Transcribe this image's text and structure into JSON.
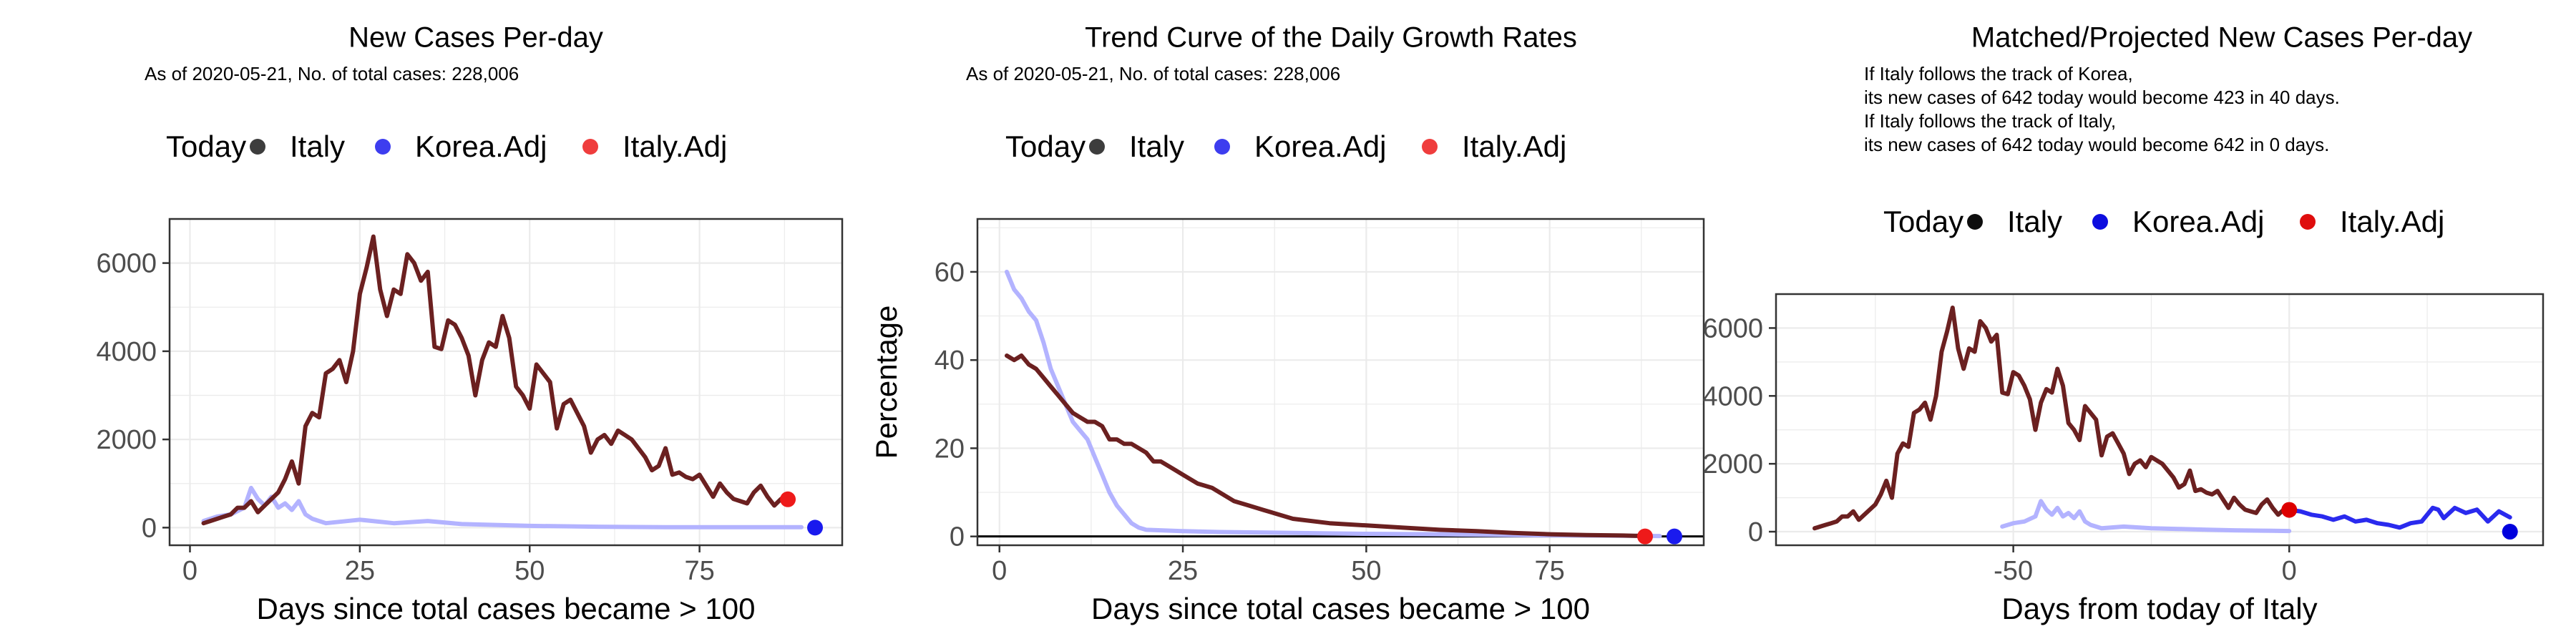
{
  "chart_data": [
    {
      "type": "line",
      "title": "New Cases Per-day",
      "subtitle": "As of 2020-05-21, No. of total cases: 228,006",
      "legend": {
        "title": "Today",
        "placement": "top",
        "entries": [
          {
            "label": "Italy",
            "color": "#333333"
          },
          {
            "label": "Korea.Adj",
            "color": "#3333ee"
          },
          {
            "label": "Italy.Adj",
            "color": "#ee3333"
          }
        ]
      },
      "xlabel": "Days since total cases became > 100",
      "ylabel": "",
      "xlim": [
        -3,
        96
      ],
      "ylim": [
        -400,
        7000
      ],
      "xticks": [
        0,
        25,
        50,
        75
      ],
      "yticks": [
        0,
        2000,
        4000,
        6000
      ],
      "grid": true,
      "series": [
        {
          "name": "Korea.Adj",
          "color": "#b3b3ff",
          "x": [
            2,
            4,
            6,
            8,
            9,
            10,
            11,
            12,
            13,
            14,
            15,
            16,
            17,
            18,
            20,
            25,
            30,
            35,
            40,
            50,
            60,
            70,
            80,
            90
          ],
          "y": [
            150,
            250,
            300,
            450,
            900,
            650,
            500,
            700,
            450,
            550,
            400,
            600,
            300,
            200,
            100,
            180,
            100,
            150,
            80,
            40,
            20,
            10,
            10,
            10
          ]
        },
        {
          "name": "Italy",
          "color": "#6b2020",
          "x": [
            2,
            3,
            4,
            5,
            6,
            7,
            8,
            9,
            10,
            11,
            12,
            13,
            14,
            15,
            16,
            17,
            18,
            19,
            20,
            21,
            22,
            23,
            24,
            25,
            26,
            27,
            28,
            29,
            30,
            31,
            32,
            33,
            34,
            35,
            36,
            37,
            38,
            39,
            40,
            41,
            42,
            43,
            44,
            45,
            46,
            47,
            48,
            49,
            50,
            51,
            52,
            53,
            54,
            55,
            56,
            57,
            58,
            59,
            60,
            61,
            62,
            63,
            64,
            65,
            66,
            67,
            68,
            69,
            70,
            71,
            72,
            73,
            74,
            75,
            76,
            77,
            78,
            79,
            80,
            81,
            82,
            83,
            84,
            85,
            86,
            87,
            88
          ],
          "y": [
            100,
            150,
            200,
            250,
            300,
            450,
            450,
            600,
            350,
            500,
            650,
            800,
            1100,
            1500,
            1000,
            2300,
            2600,
            2500,
            3500,
            3600,
            3800,
            3300,
            4000,
            5300,
            5900,
            6600,
            5400,
            4800,
            5400,
            5300,
            6200,
            6000,
            5600,
            5800,
            4100,
            4050,
            4700,
            4600,
            4300,
            3900,
            3000,
            3800,
            4200,
            4100,
            4800,
            4300,
            3200,
            3000,
            2700,
            3700,
            3500,
            3300,
            2250,
            2800,
            2900,
            2600,
            2300,
            1700,
            2000,
            2100,
            1900,
            2200,
            2100,
            2000,
            1800,
            1600,
            1300,
            1400,
            1800,
            1200,
            1250,
            1150,
            1100,
            1200,
            950,
            700,
            1000,
            800,
            650,
            600,
            550,
            800,
            950,
            700,
            500,
            650,
            642
          ]
        }
      ],
      "today_points": [
        {
          "series": "Korea.Adj",
          "x": 92,
          "y": 0,
          "color": "#1a1aee"
        },
        {
          "series": "Italy.Adj",
          "x": 88,
          "y": 642,
          "color": "#ee1a1a"
        }
      ]
    },
    {
      "type": "line",
      "title": "Trend Curve of the Daily Growth Rates",
      "subtitle": "As of 2020-05-21, No. of total cases: 228,006",
      "legend": {
        "title": "Today",
        "placement": "top",
        "entries": [
          {
            "label": "Italy",
            "color": "#333333"
          },
          {
            "label": "Korea.Adj",
            "color": "#3333ee"
          },
          {
            "label": "Italy.Adj",
            "color": "#ee3333"
          }
        ]
      },
      "xlabel": "Days since total cases became > 100",
      "ylabel": "Percentage",
      "xlim": [
        -3,
        96
      ],
      "ylim": [
        -2,
        72
      ],
      "xticks": [
        0,
        25,
        50,
        75
      ],
      "yticks": [
        0,
        20,
        40,
        60
      ],
      "grid": true,
      "hline": 0,
      "series": [
        {
          "name": "Korea.Adj",
          "color": "#b3b3ff",
          "x": [
            1,
            2,
            3,
            4,
            5,
            6,
            7,
            8,
            9,
            10,
            11,
            12,
            13,
            14,
            15,
            16,
            17,
            18,
            19,
            20,
            25,
            30,
            40,
            50,
            60,
            70,
            80,
            90
          ],
          "y": [
            60,
            56,
            54,
            51,
            49,
            44,
            38,
            34,
            30,
            26,
            24,
            22,
            18,
            14,
            10,
            7,
            5,
            3,
            2,
            1.5,
            1.2,
            1,
            0.8,
            0.6,
            0.5,
            0.3,
            0.2,
            0.1
          ]
        },
        {
          "name": "Italy",
          "color": "#6b2020",
          "x": [
            1,
            2,
            3,
            4,
            5,
            6,
            7,
            8,
            9,
            10,
            11,
            12,
            13,
            14,
            15,
            16,
            17,
            18,
            19,
            20,
            21,
            22,
            23,
            24,
            25,
            26,
            27,
            28,
            29,
            30,
            32,
            34,
            36,
            38,
            40,
            45,
            50,
            55,
            60,
            65,
            70,
            75,
            80,
            85,
            88
          ],
          "y": [
            41,
            40,
            41,
            39,
            38,
            36,
            34,
            32,
            30,
            28,
            27,
            26,
            26,
            25,
            22,
            22,
            21,
            21,
            20,
            19,
            17,
            17,
            16,
            15,
            14,
            13,
            12,
            11.5,
            11,
            10,
            8,
            7,
            6,
            5,
            4,
            3,
            2.5,
            2,
            1.5,
            1.2,
            0.8,
            0.5,
            0.3,
            0.2,
            0.1
          ]
        }
      ],
      "today_points": [
        {
          "series": "Korea.Adj",
          "x": 92,
          "y": 0,
          "color": "#1a1aee"
        },
        {
          "series": "Italy.Adj",
          "x": 88,
          "y": 0,
          "color": "#ee1a1a"
        }
      ]
    },
    {
      "type": "line",
      "title": "Matched/Projected New Cases Per-day",
      "subtitle": "If Italy follows the track of Korea,\nits new cases of 642 today would become 423 in 40 days.\nIf Italy follows the track of Italy,\nits new cases of 642 today would become 642 in 0 days.",
      "legend": {
        "title": "Today",
        "placement": "top",
        "entries": [
          {
            "label": "Italy",
            "color": "#000000"
          },
          {
            "label": "Korea.Adj",
            "color": "#0000dd"
          },
          {
            "label": "Italy.Adj",
            "color": "#dd0000"
          }
        ]
      },
      "xlabel": "Days from today of Italy",
      "ylabel": "",
      "xlim": [
        -93,
        46
      ],
      "ylim": [
        -400,
        7000
      ],
      "xticks": [
        -50,
        0
      ],
      "yticks": [
        0,
        2000,
        4000,
        6000
      ],
      "grid": true,
      "series": [
        {
          "name": "Korea.Adj",
          "color": "#b3b3ff",
          "x": [
            -52,
            -50,
            -48,
            -46,
            -45,
            -44,
            -43,
            -42,
            -41,
            -40,
            -39,
            -38,
            -37,
            -36,
            -34,
            -30,
            -25,
            -20,
            -15,
            -10,
            -5,
            0
          ],
          "y": [
            150,
            250,
            300,
            450,
            900,
            650,
            500,
            700,
            450,
            550,
            400,
            600,
            300,
            200,
            100,
            150,
            100,
            80,
            60,
            40,
            30,
            20
          ]
        },
        {
          "name": "Italy",
          "color": "#6b2020",
          "x": [
            -86,
            -85,
            -84,
            -83,
            -82,
            -81,
            -80,
            -79,
            -78,
            -77,
            -76,
            -75,
            -74,
            -73,
            -72,
            -71,
            -70,
            -69,
            -68,
            -67,
            -66,
            -65,
            -64,
            -63,
            -62,
            -61,
            -60,
            -59,
            -58,
            -57,
            -56,
            -55,
            -54,
            -53,
            -52,
            -51,
            -50,
            -49,
            -48,
            -47,
            -46,
            -45,
            -44,
            -43,
            -42,
            -41,
            -40,
            -39,
            -38,
            -37,
            -36,
            -35,
            -34,
            -33,
            -32,
            -31,
            -30,
            -29,
            -28,
            -27,
            -26,
            -25,
            -24,
            -23,
            -22,
            -21,
            -20,
            -19,
            -18,
            -17,
            -16,
            -15,
            -14,
            -13,
            -12,
            -11,
            -10,
            -9,
            -8,
            -7,
            -6,
            -5,
            -4,
            -3,
            -2,
            -1,
            0
          ],
          "y": [
            100,
            150,
            200,
            250,
            300,
            450,
            450,
            600,
            350,
            500,
            650,
            800,
            1100,
            1500,
            1000,
            2300,
            2600,
            2500,
            3500,
            3600,
            3800,
            3300,
            4000,
            5300,
            5900,
            6600,
            5400,
            4800,
            5400,
            5300,
            6200,
            6000,
            5600,
            5800,
            4100,
            4050,
            4700,
            4600,
            4300,
            3900,
            3000,
            3800,
            4200,
            4100,
            4800,
            4300,
            3200,
            3000,
            2700,
            3700,
            3500,
            3300,
            2250,
            2800,
            2900,
            2600,
            2300,
            1700,
            2000,
            2100,
            1900,
            2200,
            2100,
            2000,
            1800,
            1600,
            1300,
            1400,
            1800,
            1200,
            1250,
            1150,
            1100,
            1200,
            950,
            700,
            1000,
            800,
            650,
            600,
            550,
            800,
            950,
            700,
            500,
            650,
            642
          ]
        },
        {
          "name": "Korea.Adj projection",
          "color": "#2a2aee",
          "x": [
            0,
            2,
            4,
            6,
            8,
            10,
            12,
            14,
            16,
            18,
            20,
            22,
            24,
            26,
            27,
            28,
            30,
            32,
            34,
            36,
            38,
            40
          ],
          "y": [
            642,
            600,
            500,
            450,
            350,
            450,
            300,
            350,
            250,
            200,
            120,
            250,
            300,
            700,
            650,
            400,
            700,
            550,
            650,
            300,
            600,
            423
          ]
        }
      ],
      "today_points": [
        {
          "series": "Korea.Adj",
          "x": 40,
          "y": 0,
          "color": "#0000dd"
        },
        {
          "series": "Italy.Adj",
          "x": 0,
          "y": 642,
          "color": "#dd0000"
        }
      ]
    }
  ]
}
